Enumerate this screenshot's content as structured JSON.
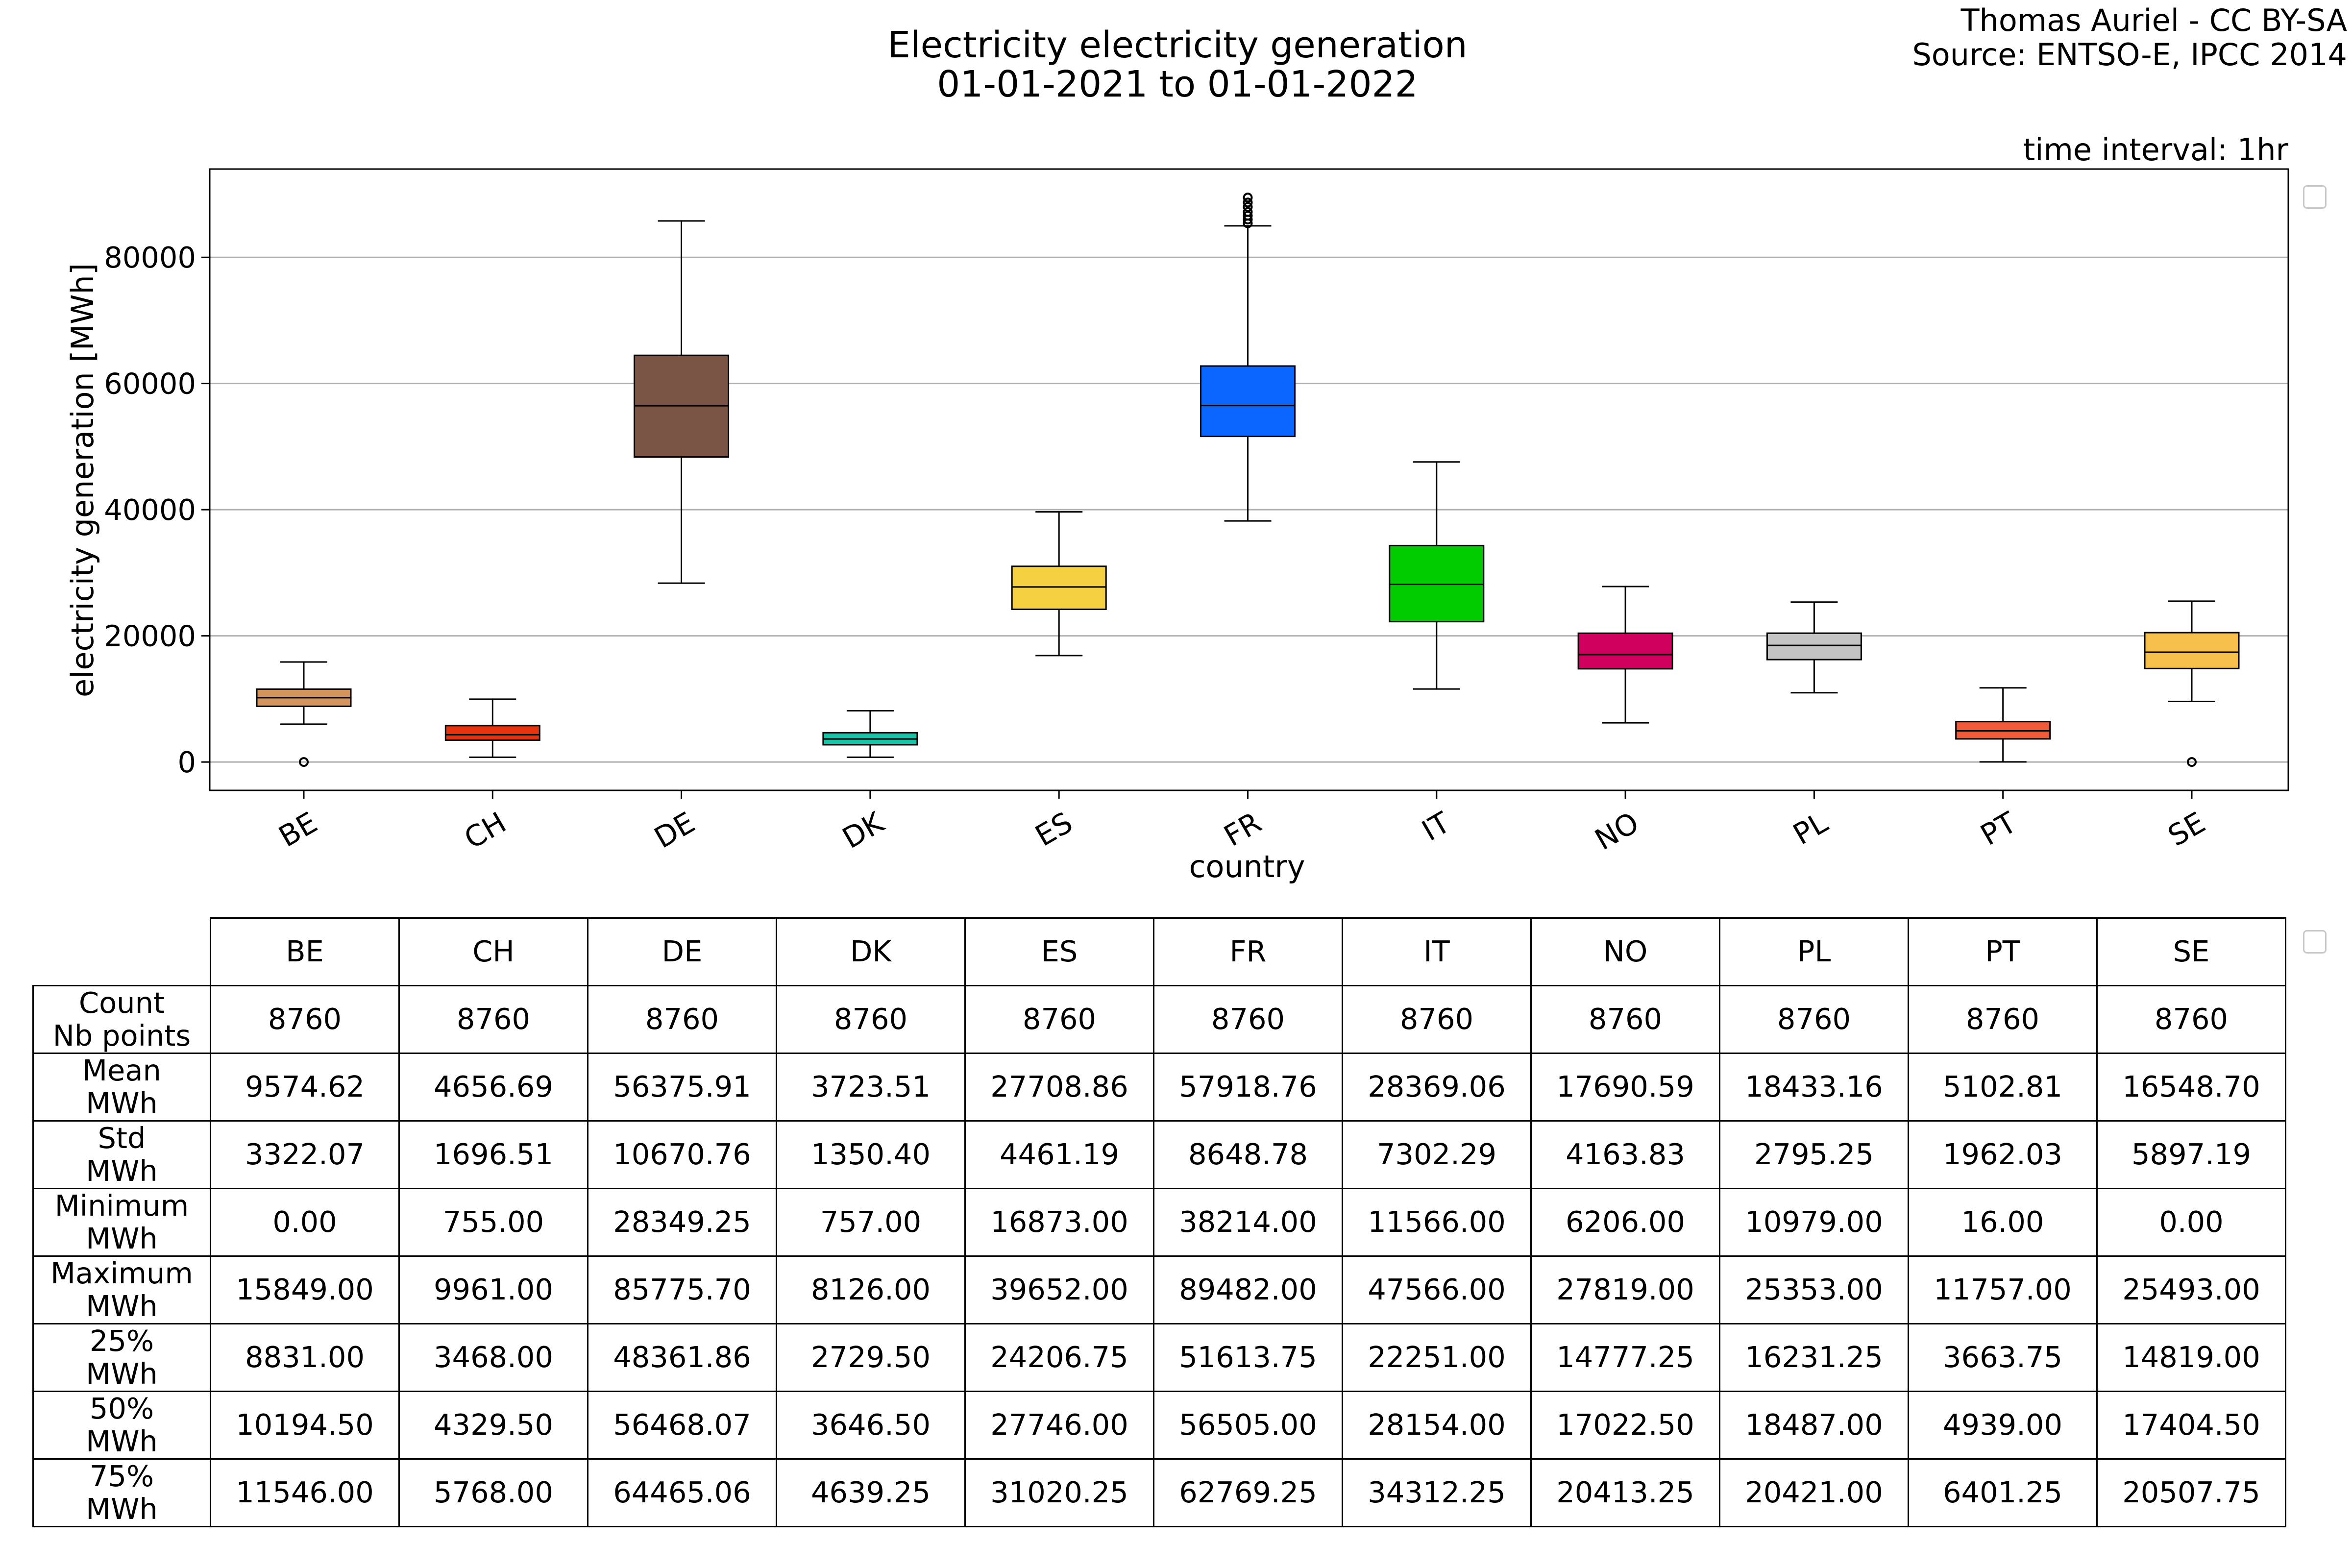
{
  "header": {
    "title_line1": "Electricity electricity generation",
    "title_line2": "01-01-2021 to 01-01-2022",
    "credit_line1": "Thomas Auriel - CC BY-SA",
    "credit_line2": "Source: ENTSO-E, IPCC 2014",
    "interval": "time interval: 1hr"
  },
  "chart_data": {
    "type": "box",
    "xlabel": "country",
    "ylabel": "electricity generation [MWh]",
    "ylim": [
      -4500,
      94000
    ],
    "yticks": [
      0,
      20000,
      40000,
      60000,
      80000
    ],
    "ytick_labels": [
      "0",
      "20000",
      "40000",
      "60000",
      "80000"
    ],
    "grid": "horizontal",
    "categories": [
      "BE",
      "CH",
      "DE",
      "DK",
      "ES",
      "FR",
      "IT",
      "NO",
      "PL",
      "PT",
      "SE"
    ],
    "colors": [
      "#d4955c",
      "#e8340e",
      "#7a5444",
      "#18c4a8",
      "#f5d142",
      "#0a66ff",
      "#00cc00",
      "#d0005e",
      "#c4c4c4",
      "#f25b3a",
      "#f7bf4b"
    ],
    "boxes": [
      {
        "whislo": 6000,
        "q1": 8831.0,
        "med": 10194.5,
        "q3": 11546.0,
        "whishi": 15849.0,
        "fliers": [
          0
        ]
      },
      {
        "whislo": 755.0,
        "q1": 3468.0,
        "med": 4329.5,
        "q3": 5768.0,
        "whishi": 9961.0,
        "fliers": []
      },
      {
        "whislo": 28349.25,
        "q1": 48361.86,
        "med": 56468.07,
        "q3": 64465.06,
        "whishi": 85775.7,
        "fliers": []
      },
      {
        "whislo": 757.0,
        "q1": 2729.5,
        "med": 3646.5,
        "q3": 4639.25,
        "whishi": 8126.0,
        "fliers": []
      },
      {
        "whislo": 16873.0,
        "q1": 24206.75,
        "med": 27746.0,
        "q3": 31020.25,
        "whishi": 39652.0,
        "fliers": []
      },
      {
        "whislo": 38214.0,
        "q1": 51613.75,
        "med": 56505.0,
        "q3": 62769.25,
        "whishi": 85000,
        "fliers": [
          85400,
          86000,
          86600,
          87200,
          88000,
          88700,
          89482
        ]
      },
      {
        "whislo": 11566.0,
        "q1": 22251.0,
        "med": 28154.0,
        "q3": 34312.25,
        "whishi": 47566.0,
        "fliers": []
      },
      {
        "whislo": 6206.0,
        "q1": 14777.25,
        "med": 17022.5,
        "q3": 20413.25,
        "whishi": 27819.0,
        "fliers": []
      },
      {
        "whislo": 10979.0,
        "q1": 16231.25,
        "med": 18487.0,
        "q3": 20421.0,
        "whishi": 25353.0,
        "fliers": []
      },
      {
        "whislo": 16.0,
        "q1": 3663.75,
        "med": 4939.0,
        "q3": 6401.25,
        "whishi": 11757.0,
        "fliers": []
      },
      {
        "whislo": 9600,
        "q1": 14819.0,
        "med": 17404.5,
        "q3": 20507.75,
        "whishi": 25493.0,
        "fliers": [
          0
        ]
      }
    ]
  },
  "table": {
    "columns": [
      "BE",
      "CH",
      "DE",
      "DK",
      "ES",
      "FR",
      "IT",
      "NO",
      "PL",
      "PT",
      "SE"
    ],
    "rows": [
      {
        "label1": "Count",
        "label2": "Nb points",
        "values": [
          "8760",
          "8760",
          "8760",
          "8760",
          "8760",
          "8760",
          "8760",
          "8760",
          "8760",
          "8760",
          "8760"
        ]
      },
      {
        "label1": "Mean",
        "label2": "MWh",
        "values": [
          "9574.62",
          "4656.69",
          "56375.91",
          "3723.51",
          "27708.86",
          "57918.76",
          "28369.06",
          "17690.59",
          "18433.16",
          "5102.81",
          "16548.70"
        ]
      },
      {
        "label1": "Std",
        "label2": "MWh",
        "values": [
          "3322.07",
          "1696.51",
          "10670.76",
          "1350.40",
          "4461.19",
          "8648.78",
          "7302.29",
          "4163.83",
          "2795.25",
          "1962.03",
          "5897.19"
        ]
      },
      {
        "label1": "Minimum",
        "label2": "MWh",
        "values": [
          "0.00",
          "755.00",
          "28349.25",
          "757.00",
          "16873.00",
          "38214.00",
          "11566.00",
          "6206.00",
          "10979.00",
          "16.00",
          "0.00"
        ]
      },
      {
        "label1": "Maximum",
        "label2": "MWh",
        "values": [
          "15849.00",
          "9961.00",
          "85775.70",
          "8126.00",
          "39652.00",
          "89482.00",
          "47566.00",
          "27819.00",
          "25353.00",
          "11757.00",
          "25493.00"
        ]
      },
      {
        "label1": "25%",
        "label2": "MWh",
        "values": [
          "8831.00",
          "3468.00",
          "48361.86",
          "2729.50",
          "24206.75",
          "51613.75",
          "22251.00",
          "14777.25",
          "16231.25",
          "3663.75",
          "14819.00"
        ]
      },
      {
        "label1": "50%",
        "label2": "MWh",
        "values": [
          "10194.50",
          "4329.50",
          "56468.07",
          "3646.50",
          "27746.00",
          "56505.00",
          "28154.00",
          "17022.50",
          "18487.00",
          "4939.00",
          "17404.50"
        ]
      },
      {
        "label1": "75%",
        "label2": "MWh",
        "values": [
          "11546.00",
          "5768.00",
          "64465.06",
          "4639.25",
          "31020.25",
          "62769.25",
          "34312.25",
          "20413.25",
          "20421.00",
          "6401.25",
          "20507.75"
        ]
      }
    ]
  }
}
